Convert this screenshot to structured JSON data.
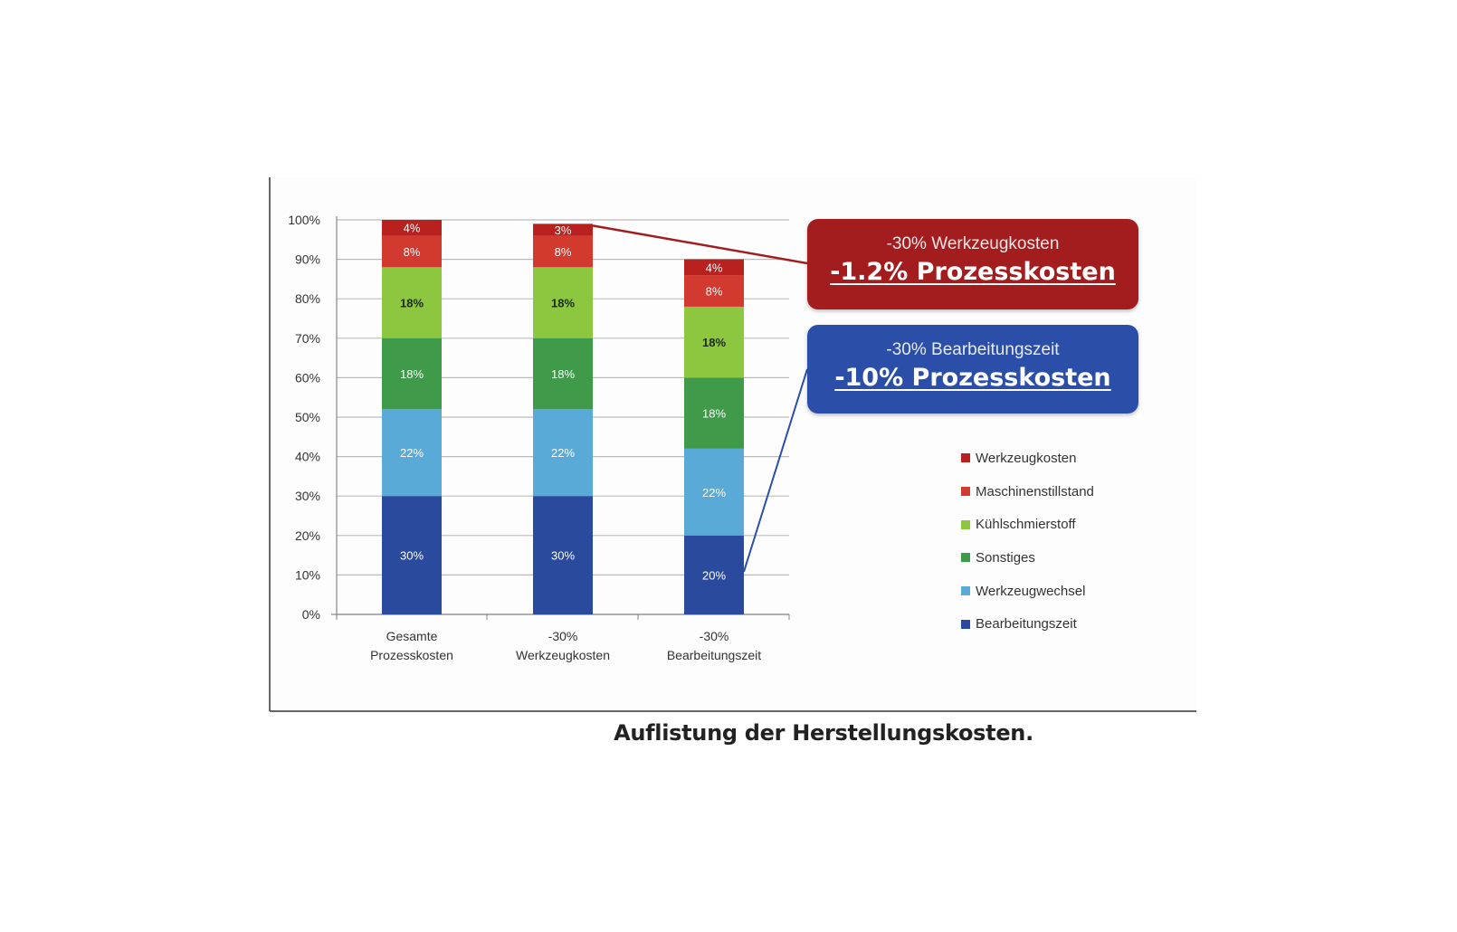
{
  "caption": "Auflistung der Herstellungskosten.",
  "callouts": [
    {
      "line1": "-30% Werkzeugkosten",
      "line2": "-1.2% Prozesskosten",
      "color": "#a31d1f"
    },
    {
      "line1": "-30% Bearbeitungszeit",
      "line2": "-10% Prozesskosten",
      "color": "#2b4fa8"
    }
  ],
  "chart_data": {
    "type": "bar",
    "stacked": true,
    "categories": [
      [
        "Gesamte",
        "Prozesskosten"
      ],
      [
        "-30%",
        "Werkzeugkosten"
      ],
      [
        "-30%",
        "Bearbeitungszeit"
      ]
    ],
    "ylim": [
      0,
      100
    ],
    "yticks": [
      "0%",
      "10%",
      "20%",
      "30%",
      "40%",
      "50%",
      "60%",
      "70%",
      "80%",
      "90%",
      "100%"
    ],
    "grid": true,
    "legend_position": "right",
    "series": [
      {
        "name": "Bearbeitungszeit",
        "color": "#2a4a9e",
        "label_color": "#ffffff",
        "values": [
          30,
          30,
          20
        ],
        "labels": [
          "30%",
          "30%",
          "20%"
        ]
      },
      {
        "name": "Werkzeugwechsel",
        "color": "#5aaad8",
        "label_color": "#ffffff",
        "values": [
          22,
          22,
          22
        ],
        "labels": [
          "22%",
          "22%",
          "22%"
        ]
      },
      {
        "name": "Sonstiges",
        "color": "#3f9a4a",
        "label_color": "#ffffff",
        "values": [
          18,
          18,
          18
        ],
        "labels": [
          "18%",
          "18%",
          "18%"
        ]
      },
      {
        "name": "Kühlschmierstoff",
        "color": "#8dc63f",
        "label_color": "#1b2b10",
        "values": [
          18,
          18,
          18
        ],
        "labels": [
          "18%",
          "18%",
          "18%"
        ]
      },
      {
        "name": "Maschinenstillstand",
        "color": "#d23a2f",
        "label_color": "#ffffff",
        "values": [
          8,
          8,
          8
        ],
        "labels": [
          "8%",
          "8%",
          "8%"
        ]
      },
      {
        "name": "Werkzeugkosten",
        "color": "#b8211e",
        "label_color": "#ffffff",
        "values": [
          4,
          3,
          4
        ],
        "labels": [
          "4%",
          "3%",
          "4%"
        ]
      }
    ]
  }
}
